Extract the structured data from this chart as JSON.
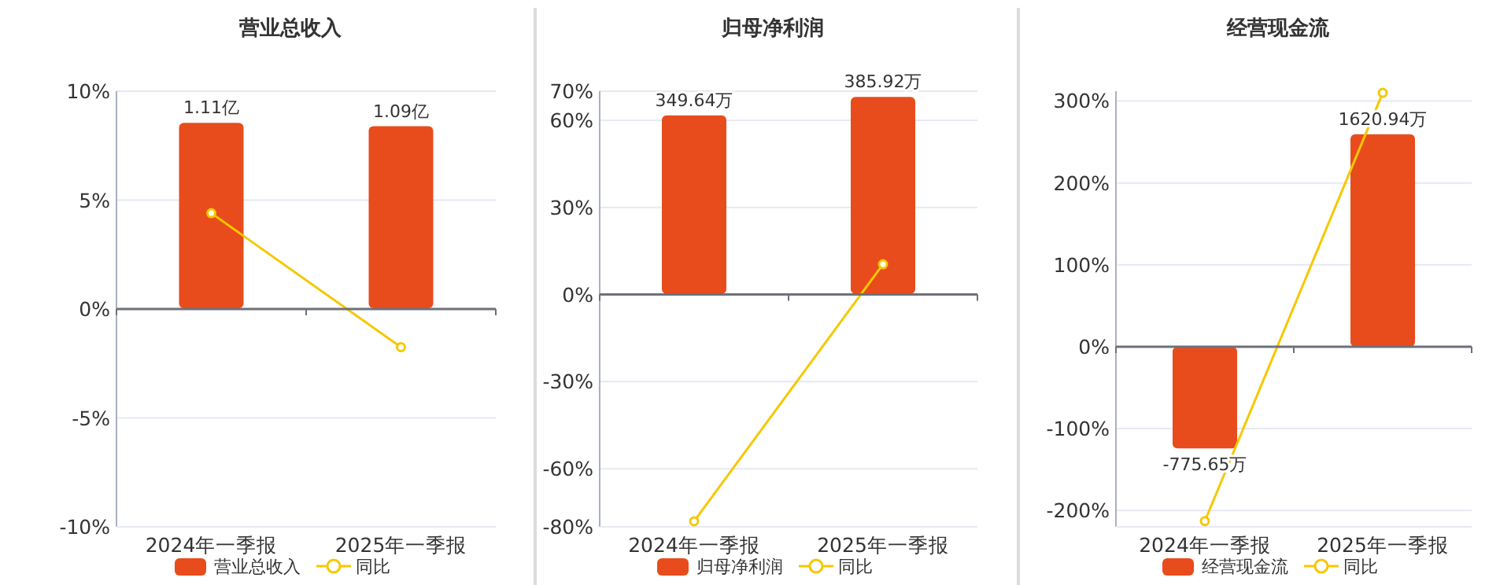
{
  "chart_data": [
    {
      "type": "bar",
      "title": "营业总收入",
      "categories": [
        "2024年一季报",
        "2025年一季报"
      ],
      "legend": "bottom",
      "grid": "y",
      "ylim": [
        -10,
        10
      ],
      "yticks": [
        {
          "value": -10,
          "label": "-10%"
        },
        {
          "value": -5,
          "label": "-5%"
        },
        {
          "value": 0,
          "label": "0%"
        },
        {
          "value": 5,
          "label": "5%"
        },
        {
          "value": 10,
          "label": "10%"
        }
      ],
      "y2lim": [
        -1.31,
        1.3
      ],
      "series": [
        {
          "name": "营业总收入",
          "axis": "y2",
          "color": "#e84c1c",
          "values": [
            1.11,
            1.09
          ],
          "value_labels": [
            "1.11亿",
            "1.09亿"
          ]
        },
        {
          "name": "同比",
          "type": "line",
          "color": "#f5c800",
          "marker": "circle",
          "values": [
            4.4,
            -1.75
          ]
        }
      ]
    },
    {
      "type": "bar",
      "title": "归母净利润",
      "categories": [
        "2024年一季报",
        "2025年一季报"
      ],
      "legend": "bottom",
      "grid": "y",
      "ylim": [
        -80,
        70
      ],
      "yticks": [
        {
          "value": -80,
          "label": "-80%"
        },
        {
          "value": -60,
          "label": "-60%"
        },
        {
          "value": -30,
          "label": "-30%"
        },
        {
          "value": 0,
          "label": "0%"
        },
        {
          "value": 30,
          "label": "30%"
        },
        {
          "value": 60,
          "label": "60%"
        },
        {
          "value": 70,
          "label": "70%"
        }
      ],
      "y2lim": [
        -456,
        397
      ],
      "series": [
        {
          "name": "归母净利润",
          "axis": "y2",
          "color": "#e84c1c",
          "values": [
            349.64,
            385.92
          ],
          "value_labels": [
            "349.64万",
            "385.92万"
          ]
        },
        {
          "name": "同比",
          "type": "line",
          "color": "#f5c800",
          "marker": "circle",
          "values": [
            -78.1,
            10.4
          ]
        }
      ]
    },
    {
      "type": "bar",
      "title": "经营现金流",
      "categories": [
        "2024年一季报",
        "2025年一季报"
      ],
      "legend": "bottom",
      "grid": "y",
      "ylim": [
        -220,
        312
      ],
      "yticks": [
        {
          "value": -200,
          "label": "-200%"
        },
        {
          "value": -100,
          "label": "-100%"
        },
        {
          "value": 0,
          "label": "0%"
        },
        {
          "value": 100,
          "label": "100%"
        },
        {
          "value": 200,
          "label": "200%"
        },
        {
          "value": 300,
          "label": "300%"
        }
      ],
      "y2lim": [
        -1375,
        1950
      ],
      "series": [
        {
          "name": "经营现金流",
          "axis": "y2",
          "color": "#e84c1c",
          "values": [
            -775.65,
            1620.94
          ],
          "value_labels": [
            "-775.65万",
            "1620.94万"
          ]
        },
        {
          "name": "同比",
          "type": "line",
          "color": "#f5c800",
          "marker": "circle",
          "values": [
            -213,
            310
          ]
        }
      ]
    }
  ]
}
